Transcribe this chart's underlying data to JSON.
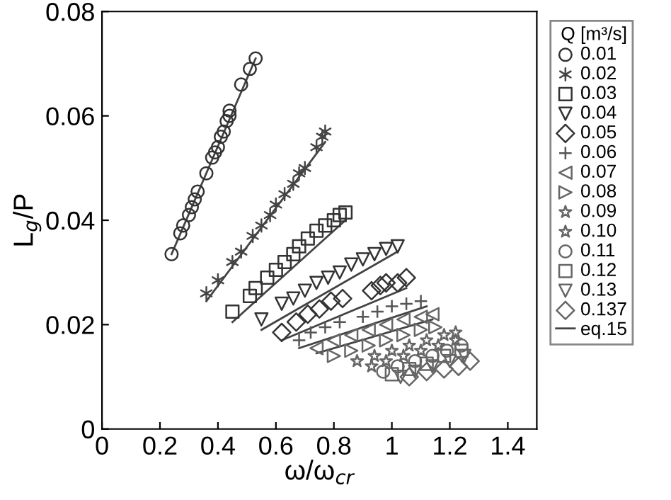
{
  "chart_data": {
    "type": "scatter",
    "xlabel": "ω/ω$_{cr}$",
    "ylabel": "L$_{g}$/P",
    "legend_title": "Q [m³/s]",
    "xlim": [
      0,
      1.5
    ],
    "ylim": [
      0,
      0.08
    ],
    "xticks": [
      0,
      0.2,
      0.4,
      0.6,
      0.8,
      1,
      1.2,
      1.4
    ],
    "yticks": [
      0,
      0.02,
      0.04,
      0.06,
      0.08
    ],
    "grid": false,
    "legend": "right",
    "series": [
      {
        "name": "0.01",
        "marker": "circle",
        "color": "#333333",
        "x": [
          0.24,
          0.27,
          0.28,
          0.3,
          0.31,
          0.32,
          0.33,
          0.36,
          0.38,
          0.39,
          0.4,
          0.41,
          0.42,
          0.43,
          0.44,
          0.44,
          0.48,
          0.51,
          0.53
        ],
        "values": [
          0.0335,
          0.0375,
          0.039,
          0.041,
          0.0425,
          0.044,
          0.0455,
          0.049,
          0.052,
          0.053,
          0.054,
          0.056,
          0.057,
          0.059,
          0.06,
          0.061,
          0.066,
          0.069,
          0.071
        ]
      },
      {
        "name": "0.02",
        "marker": "cross",
        "color": "#444444",
        "x": [
          0.36,
          0.4,
          0.45,
          0.48,
          0.52,
          0.55,
          0.58,
          0.6,
          0.63,
          0.66,
          0.68,
          0.7,
          0.74,
          0.76,
          0.77
        ],
        "values": [
          0.026,
          0.0285,
          0.032,
          0.034,
          0.037,
          0.039,
          0.041,
          0.043,
          0.045,
          0.047,
          0.049,
          0.05,
          0.054,
          0.056,
          0.057
        ]
      },
      {
        "name": "0.03",
        "marker": "square",
        "color": "#333333",
        "x": [
          0.45,
          0.51,
          0.53,
          0.57,
          0.6,
          0.63,
          0.66,
          0.68,
          0.71,
          0.74,
          0.77,
          0.8,
          0.82,
          0.84
        ],
        "values": [
          0.0225,
          0.0255,
          0.027,
          0.029,
          0.0305,
          0.032,
          0.0335,
          0.035,
          0.0365,
          0.038,
          0.039,
          0.04,
          0.041,
          0.0415
        ]
      },
      {
        "name": "0.04",
        "marker": "triangle_down",
        "color": "#333333",
        "x": [
          0.55,
          0.62,
          0.66,
          0.7,
          0.74,
          0.78,
          0.82,
          0.86,
          0.9,
          0.94,
          0.98,
          1.02
        ],
        "values": [
          0.021,
          0.024,
          0.025,
          0.0265,
          0.028,
          0.029,
          0.03,
          0.0315,
          0.0325,
          0.0335,
          0.0345,
          0.035
        ]
      },
      {
        "name": "0.05",
        "marker": "diamond",
        "color": "#333333",
        "x": [
          0.62,
          0.67,
          0.71,
          0.75,
          0.79,
          0.83,
          0.93,
          0.96,
          0.98,
          1.02,
          1.05
        ],
        "values": [
          0.0185,
          0.0205,
          0.022,
          0.023,
          0.0245,
          0.025,
          0.0265,
          0.0275,
          0.028,
          0.028,
          0.029
        ]
      },
      {
        "name": "0.06",
        "marker": "plus",
        "color": "#555555",
        "x": [
          0.68,
          0.72,
          0.77,
          0.82,
          0.9,
          0.95,
          1.0,
          1.05,
          1.1
        ],
        "values": [
          0.017,
          0.0185,
          0.0195,
          0.0205,
          0.0215,
          0.0225,
          0.0235,
          0.024,
          0.0245
        ]
      },
      {
        "name": "0.07",
        "marker": "triangle_left",
        "color": "#666666",
        "x": [
          0.74,
          0.8,
          0.86,
          0.92,
          0.98,
          1.04,
          1.1,
          1.14
        ],
        "values": [
          0.0155,
          0.017,
          0.018,
          0.019,
          0.02,
          0.021,
          0.0215,
          0.022
        ]
      },
      {
        "name": "0.08",
        "marker": "triangle_right",
        "color": "#666666",
        "x": [
          0.8,
          0.86,
          0.92,
          0.98,
          1.04,
          1.1,
          1.15
        ],
        "values": [
          0.014,
          0.015,
          0.016,
          0.017,
          0.018,
          0.019,
          0.0195
        ]
      },
      {
        "name": "0.09",
        "marker": "star",
        "color": "#666666",
        "x": [
          0.88,
          0.94,
          1.0,
          1.06,
          1.12,
          1.18,
          1.22
        ],
        "values": [
          0.013,
          0.014,
          0.015,
          0.016,
          0.017,
          0.018,
          0.0185
        ]
      },
      {
        "name": "0.10",
        "marker": "star",
        "color": "#666666",
        "x": [
          0.93,
          0.98,
          1.04,
          1.1,
          1.16,
          1.22
        ],
        "values": [
          0.012,
          0.013,
          0.014,
          0.015,
          0.016,
          0.017
        ]
      },
      {
        "name": "0.11",
        "marker": "circle",
        "color": "#666666",
        "x": [
          0.97,
          1.02,
          1.08,
          1.14,
          1.19,
          1.24
        ],
        "values": [
          0.011,
          0.012,
          0.013,
          0.014,
          0.015,
          0.016
        ]
      },
      {
        "name": "0.12",
        "marker": "square",
        "color": "#666666",
        "x": [
          1.0,
          1.06,
          1.12,
          1.18,
          1.24
        ],
        "values": [
          0.0105,
          0.0115,
          0.0125,
          0.014,
          0.015
        ]
      },
      {
        "name": "0.13",
        "marker": "triangle_down",
        "color": "#666666",
        "x": [
          1.03,
          1.08,
          1.14,
          1.2,
          1.25
        ],
        "values": [
          0.01,
          0.011,
          0.012,
          0.013,
          0.014
        ]
      },
      {
        "name": "0.137",
        "marker": "diamond",
        "color": "#666666",
        "x": [
          1.06,
          1.12,
          1.18,
          1.23,
          1.27
        ],
        "values": [
          0.01,
          0.011,
          0.0115,
          0.012,
          0.013
        ]
      },
      {
        "name": "eq.15",
        "type": "line",
        "marker": "none",
        "color": "#444444",
        "x": [
          0.24,
          0.53
        ],
        "values": [
          0.0335,
          0.071
        ]
      },
      {
        "type": "line",
        "marker": "none",
        "color": "#444444",
        "x": [
          0.36,
          0.77
        ],
        "values": [
          0.0245,
          0.055
        ]
      },
      {
        "type": "line",
        "marker": "none",
        "color": "#444444",
        "x": [
          0.45,
          0.84
        ],
        "values": [
          0.0205,
          0.04
        ]
      },
      {
        "type": "line",
        "marker": "none",
        "color": "#444444",
        "x": [
          0.55,
          1.02
        ],
        "values": [
          0.019,
          0.034
        ]
      },
      {
        "type": "line",
        "marker": "none",
        "color": "#444444",
        "x": [
          0.62,
          1.05
        ],
        "values": [
          0.017,
          0.027
        ]
      },
      {
        "type": "line",
        "marker": "none",
        "color": "#444444",
        "x": [
          0.68,
          1.12
        ],
        "values": [
          0.0155,
          0.0235
        ]
      },
      {
        "type": "line",
        "marker": "none",
        "color": "#444444",
        "x": [
          0.74,
          1.14
        ],
        "values": [
          0.0145,
          0.021
        ]
      }
    ]
  }
}
